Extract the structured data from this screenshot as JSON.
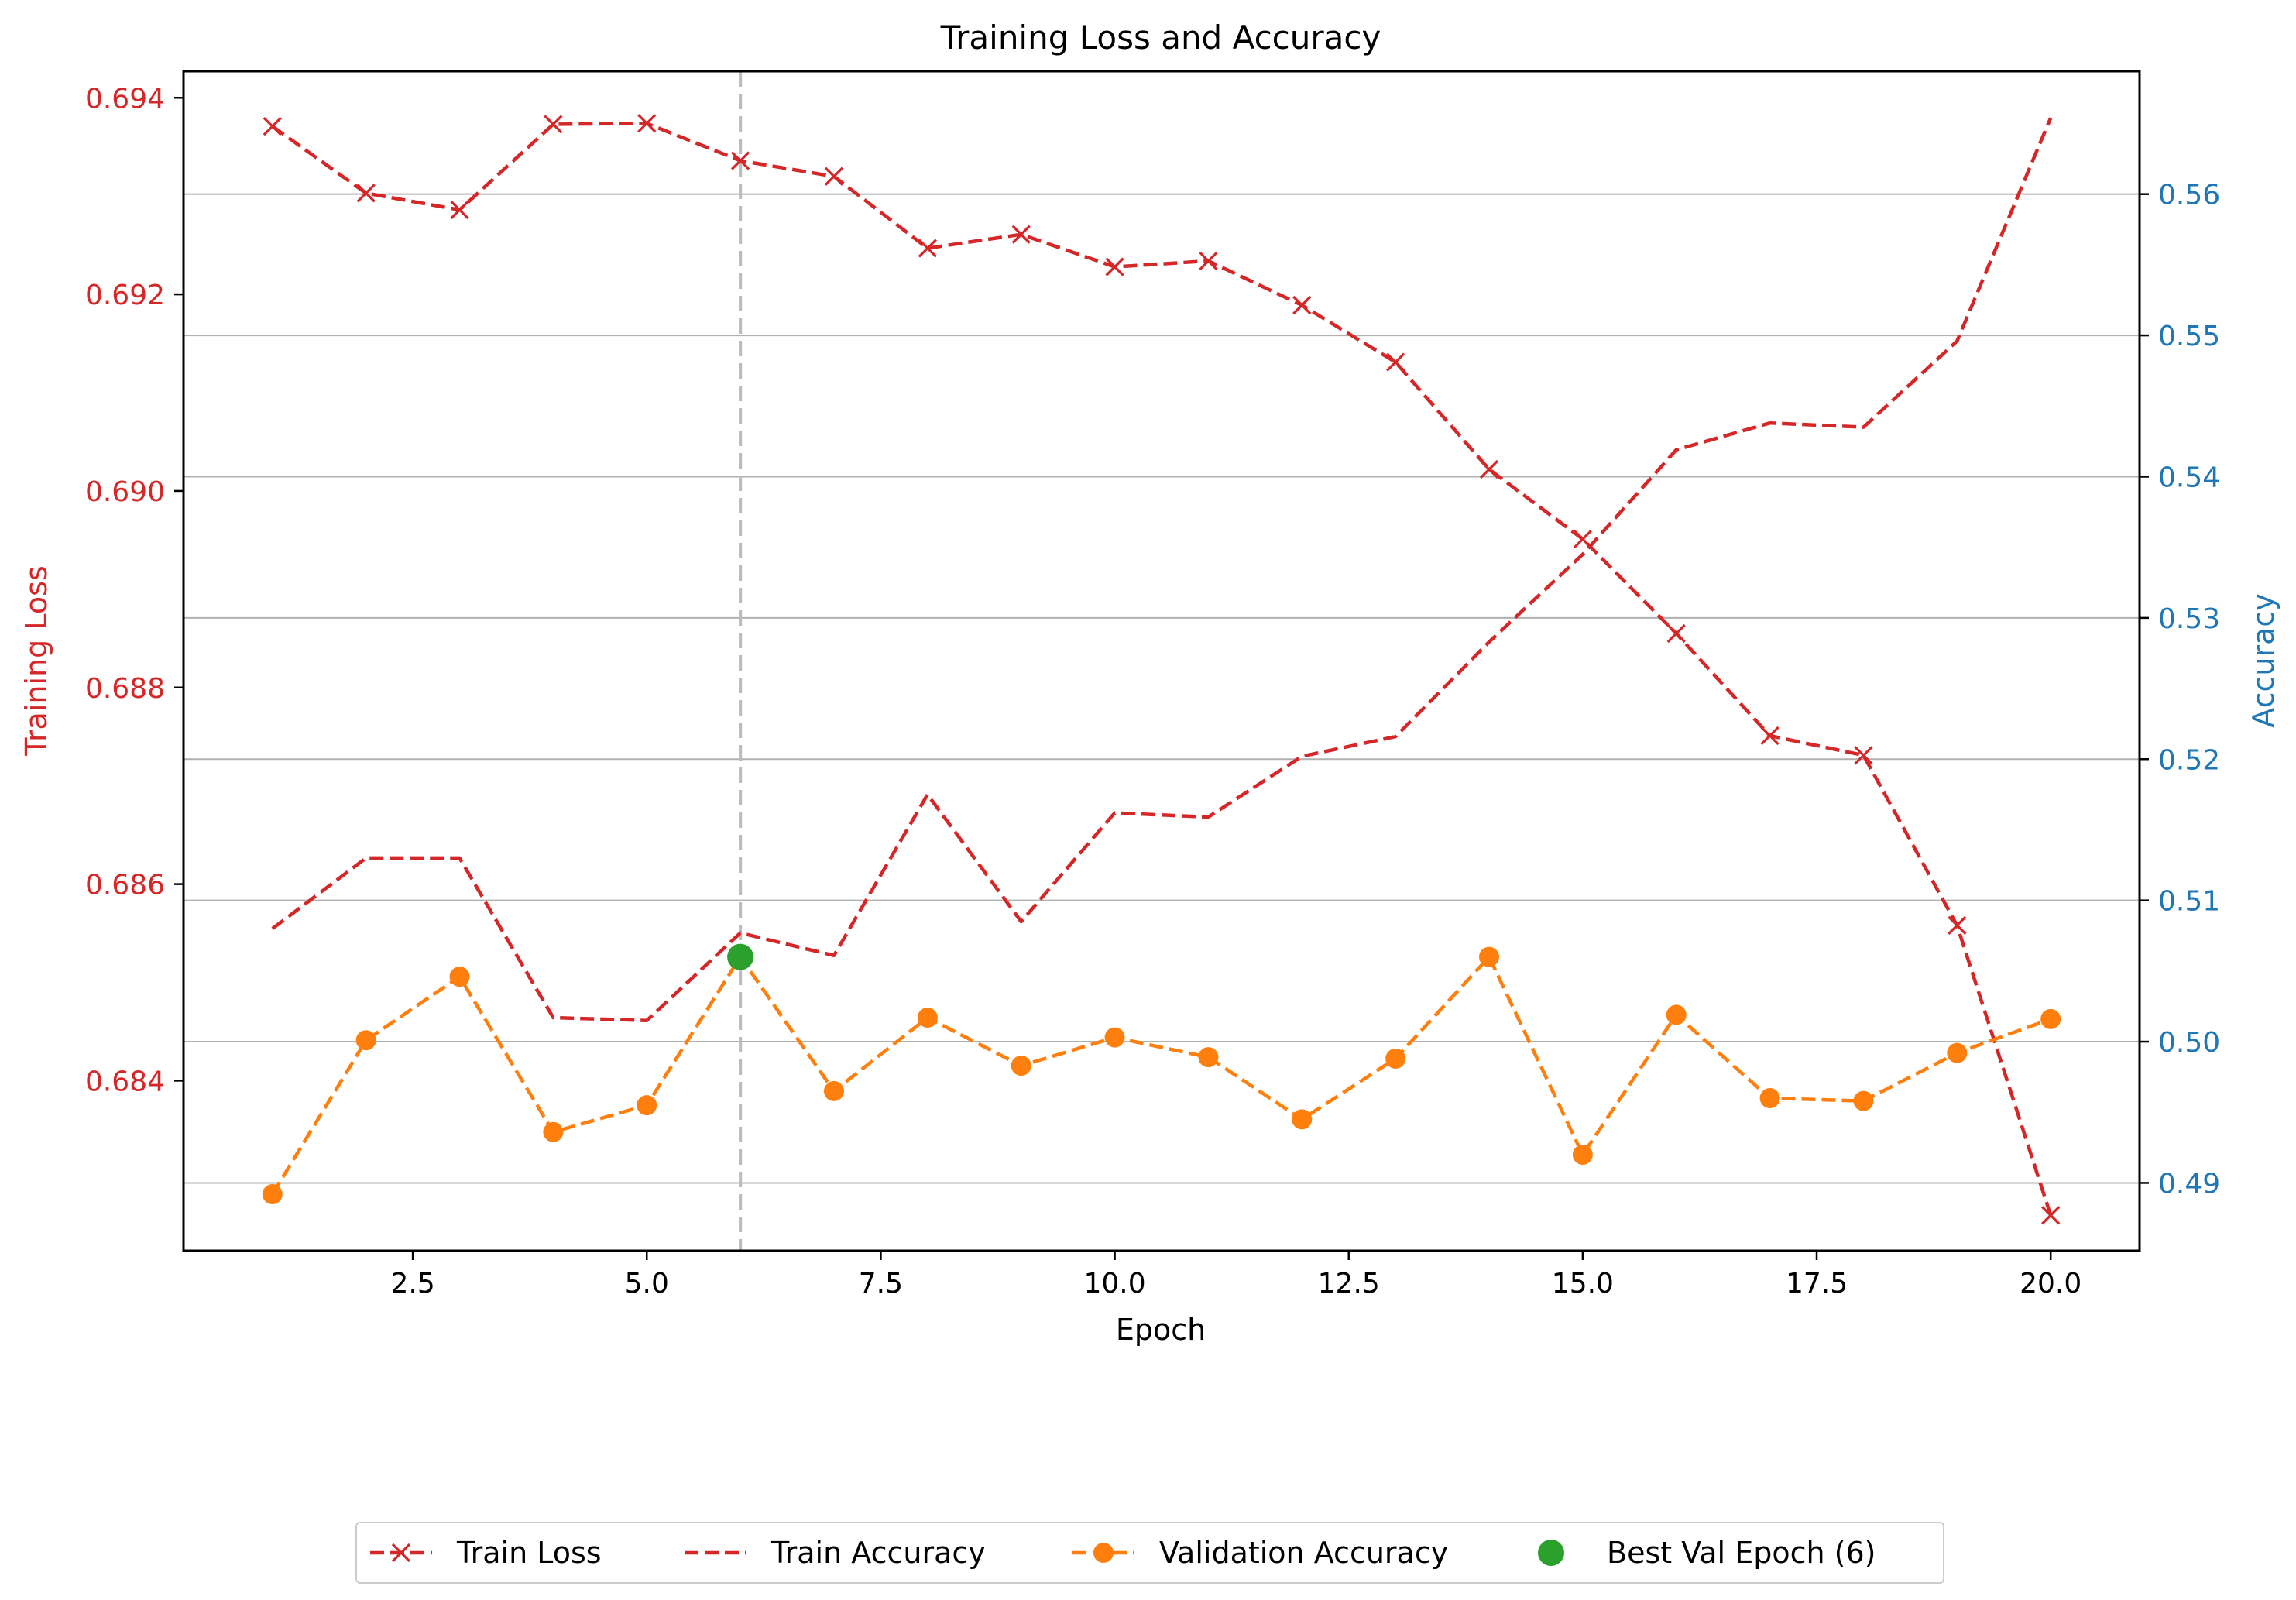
{
  "chart_data": {
    "type": "line",
    "title": "Training Loss and Accuracy",
    "xlabel": "Epoch",
    "ylabel_left": "Training Loss",
    "ylabel_right": "Accuracy",
    "x": [
      1,
      2,
      3,
      4,
      5,
      6,
      7,
      8,
      9,
      10,
      11,
      12,
      13,
      14,
      15,
      16,
      17,
      18,
      19,
      20
    ],
    "xlim": [
      0.05,
      20.95
    ],
    "ylim_left": [
      0.68227,
      0.69427
    ],
    "ylim_right": [
      0.4852,
      0.5687
    ],
    "xticks": [
      2.5,
      5.0,
      7.5,
      10.0,
      12.5,
      15.0,
      17.5,
      20.0
    ],
    "xtick_labels": [
      "2.5",
      "5.0",
      "7.5",
      "10.0",
      "12.5",
      "15.0",
      "17.5",
      "20.0"
    ],
    "yticks_left": [
      0.684,
      0.686,
      0.688,
      0.69,
      0.692,
      0.694
    ],
    "ytick_labels_left": [
      "0.684",
      "0.686",
      "0.688",
      "0.690",
      "0.692",
      "0.694"
    ],
    "yticks_right": [
      0.49,
      0.5,
      0.51,
      0.52,
      0.53,
      0.54,
      0.55,
      0.56
    ],
    "ytick_labels_right": [
      "0.49",
      "0.50",
      "0.51",
      "0.52",
      "0.53",
      "0.54",
      "0.55",
      "0.56"
    ],
    "grid": "horizontal, right axis",
    "legend_position": "bottom-center",
    "best_epoch": 6,
    "best_value": 0.506,
    "series": [
      {
        "name": "Train Loss",
        "axis": "left",
        "color": "#d62728",
        "style": "dashed",
        "marker": "x",
        "values": [
          0.69371,
          0.69303,
          0.69286,
          0.69373,
          0.69374,
          0.69336,
          0.6932,
          0.69247,
          0.69261,
          0.69228,
          0.69234,
          0.69189,
          0.69131,
          0.69022,
          0.68951,
          0.68855,
          0.68751,
          0.68731,
          0.68558,
          0.68263
        ]
      },
      {
        "name": "Train Accuracy",
        "axis": "right",
        "color": "#d62728",
        "style": "dashed",
        "marker": "none",
        "values": [
          0.508,
          0.513,
          0.513,
          0.5017,
          0.5015,
          0.5077,
          0.5061,
          0.5175,
          0.5085,
          0.5162,
          0.5159,
          0.5202,
          0.5216,
          0.5283,
          0.5345,
          0.5419,
          0.5438,
          0.5435,
          0.5496,
          0.5654
        ]
      },
      {
        "name": "Validation Accuracy",
        "axis": "right",
        "color": "#ff7f0e",
        "style": "dashed",
        "marker": "o",
        "values": [
          0.4892,
          0.5001,
          0.5046,
          0.4936,
          0.4955,
          0.506,
          0.4965,
          0.5017,
          0.4983,
          0.5003,
          0.4989,
          0.4945,
          0.4988,
          0.506,
          0.492,
          0.5019,
          0.496,
          0.4958,
          0.4992,
          0.5016
        ]
      }
    ],
    "legend": [
      {
        "label": "Train Loss",
        "color": "#d62728",
        "marker": "x",
        "dashed": true
      },
      {
        "label": "Train Accuracy",
        "color": "#d62728",
        "marker": "none",
        "dashed": true
      },
      {
        "label": "Validation Accuracy",
        "color": "#ff7f0e",
        "marker": "o",
        "dashed": true
      },
      {
        "label": "Best Val Epoch (6)",
        "color": "#2ca02c",
        "marker": "o",
        "dashed": false
      }
    ],
    "colors": {
      "left_axis": "#d62728",
      "right_axis": "#1f77b4",
      "best_marker": "#2ca02c",
      "best_line": "#bbbbbb",
      "grid": "#b0b0b0"
    }
  }
}
